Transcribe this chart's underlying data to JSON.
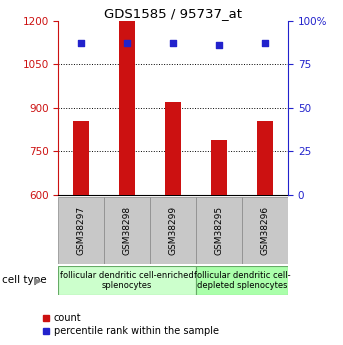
{
  "title": "GDS1585 / 95737_at",
  "samples": [
    "GSM38297",
    "GSM38298",
    "GSM38299",
    "GSM38295",
    "GSM38296"
  ],
  "count_values": [
    855,
    1200,
    920,
    790,
    855
  ],
  "percentile_values": [
    87,
    87,
    87,
    86,
    87
  ],
  "ylim_left": [
    600,
    1200
  ],
  "ylim_right": [
    0,
    100
  ],
  "yticks_left": [
    600,
    750,
    900,
    1050,
    1200
  ],
  "yticks_right": [
    0,
    25,
    50,
    75,
    100
  ],
  "bar_color": "#cc1111",
  "dot_color": "#2222cc",
  "bar_width": 0.35,
  "groups": [
    {
      "label": "follicular dendritic cell-enriched\nsplenocytes",
      "color": "#ccffcc"
    },
    {
      "label": "follicular dendritic cell-\ndepleted splenocytes",
      "color": "#aaffaa"
    }
  ],
  "legend_count_label": "count",
  "legend_pct_label": "percentile rank within the sample",
  "cell_type_label": "cell type",
  "left_axis_color": "#cc1111",
  "right_axis_color": "#2222cc",
  "bg_color": "#ffffff",
  "plot_bg_color": "#ffffff",
  "tick_label_area_color": "#c8c8c8",
  "group_label_fontsize": 6.0,
  "sample_label_fontsize": 6.5
}
